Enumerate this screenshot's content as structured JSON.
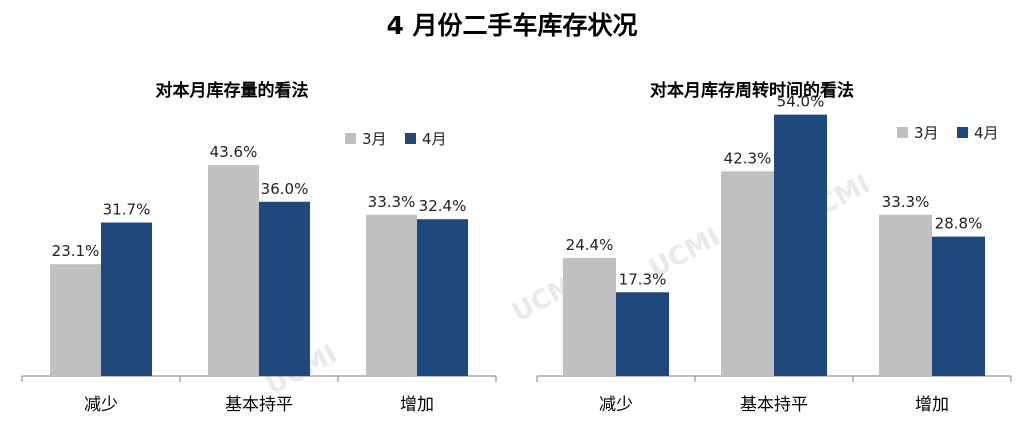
{
  "page": {
    "title": "4 月份二手车库存状况",
    "watermark": "UCMI"
  },
  "colors": {
    "march": "#c0c0c0",
    "april": "#1f497d",
    "axis": "#7f7f7f"
  },
  "chart_data": [
    {
      "type": "bar",
      "title": "对本月库存量的看法",
      "categories": [
        "减少",
        "基本持平",
        "增加"
      ],
      "series": [
        {
          "name": "3月",
          "values": [
            23.1,
            43.6,
            33.3
          ]
        },
        {
          "name": "4月",
          "values": [
            31.7,
            36.0,
            32.4
          ]
        }
      ],
      "value_labels": [
        [
          "23.1%",
          "43.6%",
          "33.3%"
        ],
        [
          "31.7%",
          "36.0%",
          "32.4%"
        ]
      ],
      "ylim": [
        0,
        60
      ],
      "legend": "top-right",
      "grid": false
    },
    {
      "type": "bar",
      "title": "对本月库存周转时间的看法",
      "categories": [
        "减少",
        "基本持平",
        "增加"
      ],
      "series": [
        {
          "name": "3月",
          "values": [
            24.4,
            42.3,
            33.3
          ]
        },
        {
          "name": "4月",
          "values": [
            17.3,
            54.0,
            28.8
          ]
        }
      ],
      "value_labels": [
        [
          "24.4%",
          "42.3%",
          "33.3%"
        ],
        [
          "17.3%",
          "54.0%",
          "28.8%"
        ]
      ],
      "ylim": [
        0,
        60
      ],
      "legend": "top-right",
      "grid": false
    }
  ]
}
